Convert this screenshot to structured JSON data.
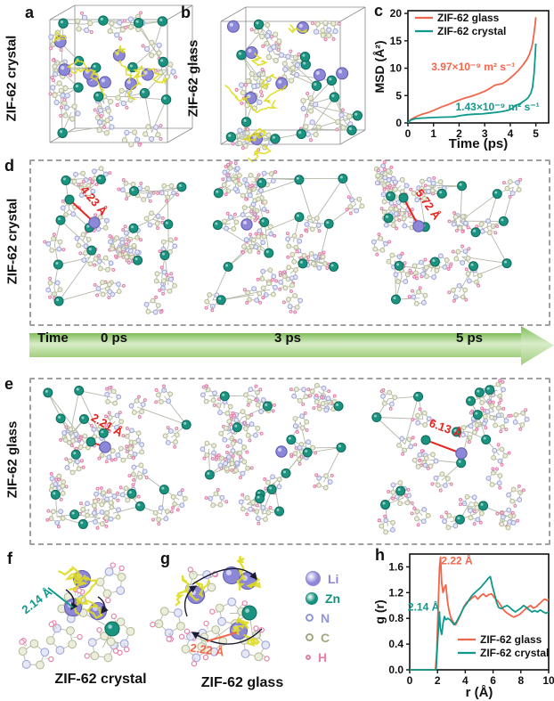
{
  "panels": {
    "a": {
      "label": "a",
      "side_label": "ZIF-62 crystal"
    },
    "b": {
      "label": "b",
      "side_label": "ZIF-62 glass"
    },
    "c": {
      "label": "c"
    },
    "d": {
      "label": "d",
      "side_label": "ZIF-62 crystal",
      "annotations": [
        "4.23 Å",
        "5.72 Å"
      ]
    },
    "e": {
      "label": "e",
      "side_label": "ZIF-62 glass",
      "annotations": [
        "2.21 Å",
        "6.13 Å"
      ]
    },
    "f": {
      "label": "f",
      "caption": "ZIF-62 crystal",
      "annotation": "2.14 Å"
    },
    "g": {
      "label": "g",
      "caption": "ZIF-62 glass",
      "annotation": "2.22 Å"
    },
    "h": {
      "label": "h"
    }
  },
  "timeline": {
    "label": "Time",
    "ticks": [
      "0 ps",
      "3 ps",
      "5 ps"
    ]
  },
  "atom_legend": [
    {
      "symbol": "Li",
      "color": "#8d87d8",
      "size": 15
    },
    {
      "symbol": "Zn",
      "color": "#14917e",
      "size": 12
    },
    {
      "symbol": "N",
      "color": "#8f96d8",
      "size": 9
    },
    {
      "symbol": "C",
      "color": "#a3a87e",
      "size": 9
    },
    {
      "symbol": "H",
      "color": "#e87fa8",
      "size": 6
    }
  ],
  "colors": {
    "glass": "#f2654a",
    "crystal": "#0e998c",
    "annotation_red": "#e8231d",
    "li": "#8d87d8",
    "li_dark": "#5f59b0",
    "zn": "#1a9480",
    "zn_dark": "#0d6a5a",
    "n": "#a0a8dc",
    "n_light": "#e6e8f7",
    "c": "#b9bd9a",
    "c_light": "#eceedd",
    "h": "#e583ad",
    "yellow": "#dedc1f",
    "bond": "#b3b8a8",
    "box_line": "#8a8a8a"
  },
  "chart_data": [
    {
      "type": "line",
      "title": "",
      "xlabel": "Time (ps)",
      "ylabel": "MSD (Å²)",
      "xlim": [
        0,
        5.5
      ],
      "ylim": [
        0,
        20.5
      ],
      "xticks": [
        {
          "v": 0,
          "label": "0"
        },
        {
          "v": 1,
          "label": "1"
        },
        {
          "v": 2,
          "label": "2"
        },
        {
          "v": 3,
          "label": "3"
        },
        {
          "v": 4,
          "label": "4"
        },
        {
          "v": 5,
          "label": "5"
        }
      ],
      "yticks": [
        {
          "v": 0,
          "label": "0"
        },
        {
          "v": 5,
          "label": "5"
        },
        {
          "v": 10,
          "label": "10"
        },
        {
          "v": 15,
          "label": "15"
        },
        {
          "v": 20,
          "label": "20"
        }
      ],
      "grid": false,
      "legend_position": "top-left",
      "series": [
        {
          "name": "ZIF-62 glass",
          "color": "#f2654a",
          "points": [
            [
              0,
              0
            ],
            [
              0.1,
              0.6
            ],
            [
              0.3,
              1.1
            ],
            [
              0.5,
              1.5
            ],
            [
              0.8,
              1.9
            ],
            [
              1.0,
              2.3
            ],
            [
              1.3,
              2.9
            ],
            [
              1.6,
              3.4
            ],
            [
              1.9,
              4.0
            ],
            [
              2.2,
              4.5
            ],
            [
              2.5,
              4.9
            ],
            [
              2.8,
              5.4
            ],
            [
              3.0,
              5.8
            ],
            [
              3.2,
              6.3
            ],
            [
              3.4,
              6.9
            ],
            [
              3.5,
              7.0
            ],
            [
              3.7,
              7.2
            ],
            [
              3.9,
              7.8
            ],
            [
              4.1,
              8.6
            ],
            [
              4.3,
              9.5
            ],
            [
              4.5,
              10.6
            ],
            [
              4.65,
              11.6
            ],
            [
              4.75,
              12.6
            ],
            [
              4.85,
              14.0
            ],
            [
              4.92,
              16.0
            ],
            [
              4.97,
              18.0
            ],
            [
              5.0,
              19.3
            ]
          ]
        },
        {
          "name": "ZIF-62 crystal",
          "color": "#0e998c",
          "points": [
            [
              0,
              0
            ],
            [
              0.1,
              0.5
            ],
            [
              0.3,
              0.8
            ],
            [
              0.6,
              0.9
            ],
            [
              1.0,
              1.0
            ],
            [
              1.4,
              1.05
            ],
            [
              1.8,
              1.1
            ],
            [
              2.0,
              1.3
            ],
            [
              2.3,
              1.5
            ],
            [
              2.6,
              1.6
            ],
            [
              2.9,
              1.65
            ],
            [
              3.1,
              1.75
            ],
            [
              3.4,
              1.9
            ],
            [
              3.7,
              2.1
            ],
            [
              3.9,
              2.3
            ],
            [
              4.1,
              2.7
            ],
            [
              4.2,
              3.2
            ],
            [
              4.35,
              3.4
            ],
            [
              4.5,
              3.9
            ],
            [
              4.6,
              4.2
            ],
            [
              4.7,
              4.6
            ],
            [
              4.8,
              5.4
            ],
            [
              4.87,
              6.5
            ],
            [
              4.93,
              9.0
            ],
            [
              4.97,
              12.0
            ],
            [
              5.0,
              14.5
            ]
          ]
        }
      ],
      "annotations": [
        {
          "text": "3.97×10⁻⁹ m² s⁻¹",
          "x": 2.55,
          "y": 9.6,
          "color": "#f2654a"
        },
        {
          "text": "1.43×10⁻⁹ m² s⁻¹",
          "x": 3.5,
          "y": 2.3,
          "color": "#0e998c"
        }
      ]
    },
    {
      "type": "line",
      "title": "",
      "xlabel": "r (Å)",
      "ylabel": "g (r)",
      "xlim": [
        0,
        10
      ],
      "ylim": [
        0,
        1.8
      ],
      "xticks": [
        {
          "v": 0,
          "label": "0"
        },
        {
          "v": 2,
          "label": "2"
        },
        {
          "v": 4,
          "label": "4"
        },
        {
          "v": 6,
          "label": "6"
        },
        {
          "v": 8,
          "label": "8"
        },
        {
          "v": 10,
          "label": "10"
        }
      ],
      "yticks": [
        {
          "v": 0,
          "label": "0.0"
        },
        {
          "v": 0.4,
          "label": "0.4"
        },
        {
          "v": 0.8,
          "label": "0.8"
        },
        {
          "v": 1.2,
          "label": "1.2"
        },
        {
          "v": 1.6,
          "label": "1.6"
        }
      ],
      "grid": false,
      "legend_position": "bottom-right",
      "series": [
        {
          "name": "ZIF-62 glass",
          "color": "#f2654a",
          "points": [
            [
              0,
              0
            ],
            [
              1.85,
              0
            ],
            [
              1.95,
              0.3
            ],
            [
              2.05,
              1.0
            ],
            [
              2.15,
              1.6
            ],
            [
              2.22,
              1.75
            ],
            [
              2.3,
              1.35
            ],
            [
              2.4,
              1.2
            ],
            [
              2.5,
              1.28
            ],
            [
              2.6,
              1.32
            ],
            [
              2.7,
              1.1
            ],
            [
              2.8,
              0.95
            ],
            [
              2.95,
              0.82
            ],
            [
              3.1,
              0.75
            ],
            [
              3.3,
              0.7
            ],
            [
              3.5,
              0.78
            ],
            [
              3.7,
              0.88
            ],
            [
              3.9,
              0.98
            ],
            [
              4.1,
              1.05
            ],
            [
              4.3,
              1.08
            ],
            [
              4.5,
              1.12
            ],
            [
              4.7,
              1.15
            ],
            [
              4.9,
              1.1
            ],
            [
              5.1,
              1.15
            ],
            [
              5.3,
              1.18
            ],
            [
              5.5,
              1.14
            ],
            [
              5.7,
              1.17
            ],
            [
              5.9,
              1.18
            ],
            [
              6.1,
              1.12
            ],
            [
              6.3,
              1.08
            ],
            [
              6.5,
              1.02
            ],
            [
              6.7,
              0.95
            ],
            [
              6.9,
              0.9
            ],
            [
              7.1,
              0.87
            ],
            [
              7.3,
              0.84
            ],
            [
              7.5,
              0.82
            ],
            [
              7.7,
              0.84
            ],
            [
              7.9,
              0.86
            ],
            [
              8.1,
              0.9
            ],
            [
              8.3,
              0.94
            ],
            [
              8.5,
              0.97
            ],
            [
              8.7,
              1.0
            ],
            [
              8.9,
              0.96
            ],
            [
              9.1,
              0.98
            ],
            [
              9.3,
              1.02
            ],
            [
              9.5,
              1.06
            ],
            [
              9.7,
              1.1
            ],
            [
              9.9,
              1.08
            ],
            [
              10,
              1.1
            ]
          ]
        },
        {
          "name": "ZIF-62 crystal",
          "color": "#0e998c",
          "points": [
            [
              0,
              0
            ],
            [
              1.9,
              0
            ],
            [
              2.0,
              0.4
            ],
            [
              2.08,
              0.7
            ],
            [
              2.14,
              0.9
            ],
            [
              2.2,
              0.65
            ],
            [
              2.3,
              0.55
            ],
            [
              2.4,
              0.72
            ],
            [
              2.5,
              0.83
            ],
            [
              2.6,
              0.78
            ],
            [
              2.75,
              0.8
            ],
            [
              2.9,
              0.78
            ],
            [
              3.05,
              0.74
            ],
            [
              3.2,
              0.7
            ],
            [
              3.35,
              0.74
            ],
            [
              3.5,
              0.8
            ],
            [
              3.7,
              0.88
            ],
            [
              3.9,
              0.97
            ],
            [
              4.1,
              1.03
            ],
            [
              4.3,
              1.1
            ],
            [
              4.5,
              1.16
            ],
            [
              4.7,
              1.2
            ],
            [
              4.9,
              1.24
            ],
            [
              5.1,
              1.28
            ],
            [
              5.3,
              1.33
            ],
            [
              5.5,
              1.38
            ],
            [
              5.65,
              1.42
            ],
            [
              5.8,
              1.45
            ],
            [
              5.95,
              1.3
            ],
            [
              6.1,
              1.18
            ],
            [
              6.25,
              1.05
            ],
            [
              6.4,
              0.97
            ],
            [
              6.6,
              0.95
            ],
            [
              6.8,
              0.98
            ],
            [
              7.0,
              1.0
            ],
            [
              7.2,
              0.97
            ],
            [
              7.4,
              0.93
            ],
            [
              7.6,
              0.9
            ],
            [
              7.8,
              0.93
            ],
            [
              8.0,
              0.96
            ],
            [
              8.2,
              1.0
            ],
            [
              8.4,
              0.97
            ],
            [
              8.6,
              0.93
            ],
            [
              8.8,
              0.9
            ],
            [
              9.0,
              0.92
            ],
            [
              9.2,
              0.9
            ],
            [
              9.4,
              0.93
            ],
            [
              9.6,
              0.9
            ],
            [
              9.8,
              0.88
            ],
            [
              10,
              0.9
            ]
          ]
        }
      ],
      "annotations": [
        {
          "text": "2.22 Å",
          "x": 3.4,
          "y": 1.64,
          "color": "#f2654a"
        },
        {
          "text": "2.14 Å",
          "x": 1.0,
          "y": 0.92,
          "color": "#0e998c"
        }
      ]
    }
  ]
}
